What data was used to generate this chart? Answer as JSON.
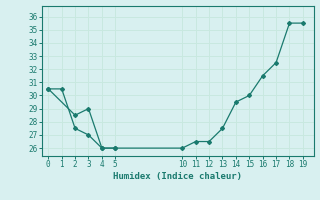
{
  "line1_x": [
    0,
    1,
    2,
    3,
    4,
    5
  ],
  "line1_y": [
    30.5,
    30.5,
    27.5,
    27.0,
    26.0,
    26.0
  ],
  "line2_x": [
    0,
    2,
    3,
    4,
    5,
    10,
    11,
    12,
    13,
    14,
    15,
    16,
    17,
    18,
    19
  ],
  "line2_y": [
    30.5,
    28.5,
    29.0,
    26.0,
    26.0,
    26.0,
    26.5,
    26.5,
    27.5,
    29.5,
    30.0,
    31.5,
    32.5,
    35.5,
    35.5
  ],
  "line_color": "#1a7a6e",
  "marker_color": "#1a7a6e",
  "bg_color": "#d8f0f0",
  "grid_color": "#c8e8e0",
  "xlabel": "Humidex (Indice chaleur)",
  "xtick_vals": [
    0,
    1,
    2,
    3,
    4,
    5,
    10,
    11,
    12,
    13,
    14,
    15,
    16,
    17,
    18,
    19
  ],
  "ytick_vals": [
    26,
    27,
    28,
    29,
    30,
    31,
    32,
    33,
    34,
    35,
    36
  ],
  "xlim": [
    -0.5,
    19.8
  ],
  "ylim": [
    25.4,
    36.8
  ]
}
